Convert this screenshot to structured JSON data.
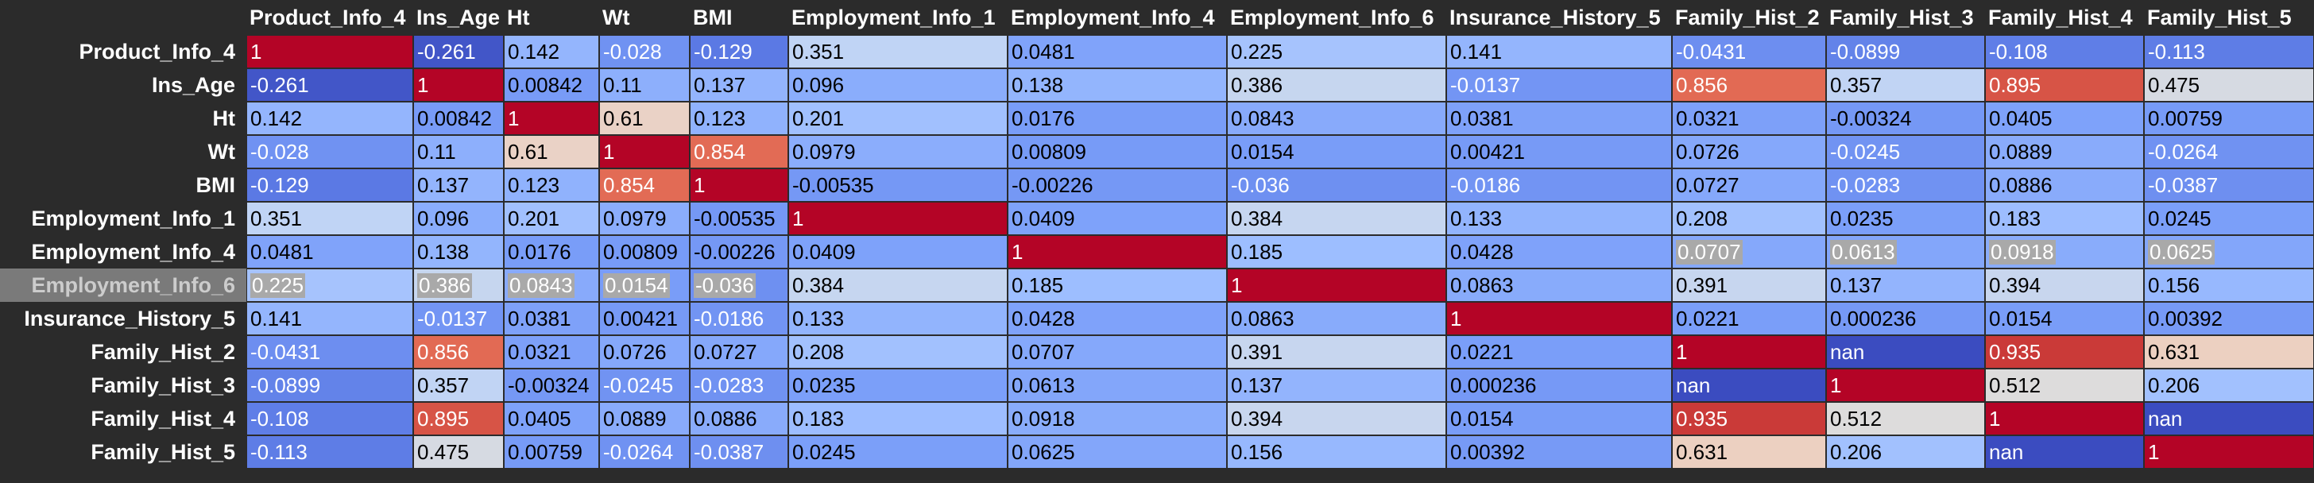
{
  "table": {
    "columns": [
      "Product_Info_4",
      "Ins_Age",
      "Ht",
      "Wt",
      "BMI",
      "Employment_Info_1",
      "Employment_Info_4",
      "Employment_Info_6",
      "Insurance_History_5",
      "Family_Hist_2",
      "Family_Hist_3",
      "Family_Hist_4",
      "Family_Hist_5"
    ],
    "highlighted_row": "Employment_Info_6",
    "rows": [
      {
        "label": "Product_Info_4",
        "values": [
          "1",
          "-0.261",
          "0.142",
          "-0.028",
          "-0.129",
          "0.351",
          "0.0481",
          "0.225",
          "0.141",
          "-0.0431",
          "-0.0899",
          "-0.108",
          "-0.113"
        ]
      },
      {
        "label": "Ins_Age",
        "values": [
          "-0.261",
          "1",
          "0.00842",
          "0.11",
          "0.137",
          "0.096",
          "0.138",
          "0.386",
          "-0.0137",
          "0.856",
          "0.357",
          "0.895",
          "0.475"
        ]
      },
      {
        "label": "Ht",
        "values": [
          "0.142",
          "0.00842",
          "1",
          "0.61",
          "0.123",
          "0.201",
          "0.0176",
          "0.0843",
          "0.0381",
          "0.0321",
          "-0.00324",
          "0.0405",
          "0.00759"
        ]
      },
      {
        "label": "Wt",
        "values": [
          "-0.028",
          "0.11",
          "0.61",
          "1",
          "0.854",
          "0.0979",
          "0.00809",
          "0.0154",
          "0.00421",
          "0.0726",
          "-0.0245",
          "0.0889",
          "-0.0264"
        ]
      },
      {
        "label": "BMI",
        "values": [
          "-0.129",
          "0.137",
          "0.123",
          "0.854",
          "1",
          "-0.00535",
          "-0.00226",
          "-0.036",
          "-0.0186",
          "0.0727",
          "-0.0283",
          "0.0886",
          "-0.0387"
        ]
      },
      {
        "label": "Employment_Info_1",
        "values": [
          "0.351",
          "0.096",
          "0.201",
          "0.0979",
          "-0.00535",
          "1",
          "0.0409",
          "0.384",
          "0.133",
          "0.208",
          "0.0235",
          "0.183",
          "0.0245"
        ]
      },
      {
        "label": "Employment_Info_4",
        "values": [
          "0.0481",
          "0.138",
          "0.0176",
          "0.00809",
          "-0.00226",
          "0.0409",
          "1",
          "0.185",
          "0.0428",
          "0.0707",
          "0.0613",
          "0.0918",
          "0.0625"
        ]
      },
      {
        "label": "Employment_Info_6",
        "values": [
          "0.225",
          "0.386",
          "0.0843",
          "0.0154",
          "-0.036",
          "0.384",
          "0.185",
          "1",
          "0.0863",
          "0.391",
          "0.137",
          "0.394",
          "0.156"
        ]
      },
      {
        "label": "Insurance_History_5",
        "values": [
          "0.141",
          "-0.0137",
          "0.0381",
          "0.00421",
          "-0.0186",
          "0.133",
          "0.0428",
          "0.0863",
          "1",
          "0.0221",
          "0.000236",
          "0.0154",
          "0.00392"
        ]
      },
      {
        "label": "Family_Hist_2",
        "values": [
          "-0.0431",
          "0.856",
          "0.0321",
          "0.0726",
          "0.0727",
          "0.208",
          "0.0707",
          "0.391",
          "0.0221",
          "1",
          "nan",
          "0.935",
          "0.631"
        ]
      },
      {
        "label": "Family_Hist_3",
        "values": [
          "-0.0899",
          "0.357",
          "-0.00324",
          "-0.0245",
          "-0.0283",
          "0.0235",
          "0.0613",
          "0.137",
          "0.000236",
          "nan",
          "1",
          "0.512",
          "0.206"
        ]
      },
      {
        "label": "Family_Hist_4",
        "values": [
          "-0.108",
          "0.895",
          "0.0405",
          "0.0889",
          "0.0886",
          "0.183",
          "0.0918",
          "0.394",
          "0.0154",
          "0.935",
          "0.512",
          "1",
          "nan"
        ]
      },
      {
        "label": "Family_Hist_5",
        "values": [
          "-0.113",
          "0.475",
          "0.00759",
          "-0.0264",
          "-0.0387",
          "0.0245",
          "0.0625",
          "0.156",
          "0.00392",
          "0.631",
          "0.206",
          "nan",
          "1"
        ]
      }
    ],
    "colors": {
      "background": "#2b2b2b",
      "nan": "#3b4cc0",
      "highlight_cell": "#a9a9a9",
      "diverging_map": [
        [
          0.0,
          "#3b4cc0"
        ],
        [
          0.125,
          "#5977e3"
        ],
        [
          0.25,
          "#7b9ff9"
        ],
        [
          0.375,
          "#9ebeff"
        ],
        [
          0.5,
          "#c0d4f5"
        ],
        [
          0.625,
          "#dddcdc"
        ],
        [
          0.75,
          "#f2cbb7"
        ],
        [
          0.8125,
          "#f4987a"
        ],
        [
          0.875,
          "#e7745b"
        ],
        [
          0.9375,
          "#d0473d"
        ],
        [
          1.0,
          "#b40426"
        ]
      ]
    }
  }
}
